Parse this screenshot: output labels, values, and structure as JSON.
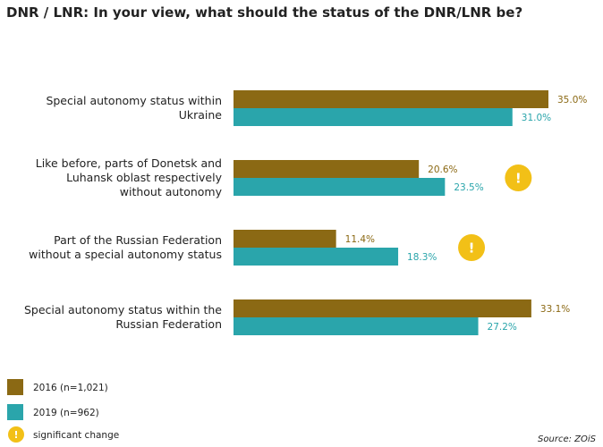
{
  "chart_data": {
    "type": "bar",
    "orientation": "horizontal",
    "title": "DNR / LNR: In your view, what should the status of the DNR/LNR be?",
    "categories": [
      [
        "Special autonomy status within",
        "Ukraine"
      ],
      [
        "Like before, parts of Donetsk and",
        "Luhansk oblast respectively",
        "without autonomy"
      ],
      [
        "Part of the Russian Federation",
        "without a special autonomy status"
      ],
      [
        "Special autonomy status within the",
        "Russian Federation"
      ]
    ],
    "series": [
      {
        "name": "2016 (n=1,021)",
        "color": "#8b6914",
        "values": [
          35.0,
          20.6,
          11.4,
          33.1
        ],
        "labels": [
          "35.0%",
          "20.6%",
          "11.4%",
          "33.1%"
        ]
      },
      {
        "name": "2019 (n=962)",
        "color": "#2aa5ab",
        "values": [
          31.0,
          23.5,
          18.3,
          27.2
        ],
        "labels": [
          "31.0%",
          "23.5%",
          "18.3%",
          "27.2%"
        ]
      }
    ],
    "significant_change": [
      false,
      true,
      true,
      false
    ],
    "xlim": [
      0,
      35
    ],
    "legend_position": "bottom-left",
    "legend": {
      "significant_label": "significant change",
      "significant_color": "#f2c017",
      "significant_glyph": "!"
    },
    "source": "Source: ZOiS"
  }
}
